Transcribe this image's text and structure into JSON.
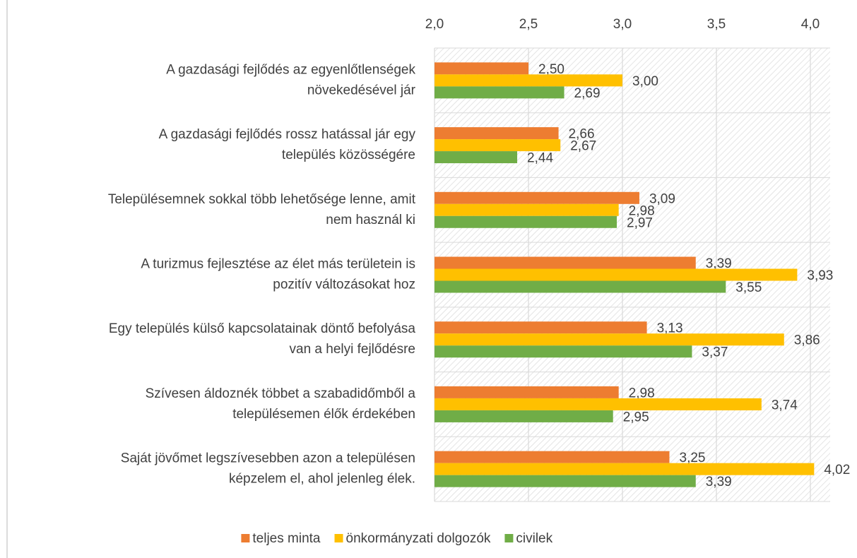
{
  "chart_data": {
    "type": "barh",
    "categories": [
      [
        "A gazdasági fejlődés az egyenlőtlenségek",
        "növekedésével jár"
      ],
      [
        "A gazdasági fejlődés rossz hatással jár egy",
        "település közösségére"
      ],
      [
        "Településemnek sokkal több lehetősége lenne, amit",
        "nem használ ki"
      ],
      [
        "A turizmus fejlesztése az élet más területein is",
        "pozitív változásokat hoz"
      ],
      [
        "Egy település külső kapcsolatainak döntő befolyása",
        "van a helyi fejlődésre"
      ],
      [
        "Szívesen áldoznék többet a szabadidőmből a",
        "településemen élők érdekében"
      ],
      [
        "Saját jövőmet legszívesebben azon a településen",
        "képzelem el, ahol jelenleg élek."
      ]
    ],
    "series": [
      {
        "name": "teljes minta",
        "color": "#ED7D31",
        "values": [
          2.5,
          2.66,
          3.09,
          3.39,
          3.13,
          2.98,
          3.25
        ],
        "value_labels": [
          "2,50",
          "2,66",
          "3,09",
          "3,39",
          "3,13",
          "2,98",
          "3,25"
        ]
      },
      {
        "name": "önkormányzati dolgozók",
        "color": "#FFC000",
        "values": [
          3.0,
          2.67,
          2.98,
          3.93,
          3.86,
          3.74,
          4.02
        ],
        "value_labels": [
          "3,00",
          "2,67",
          "2,98",
          "3,93",
          "3,86",
          "3,74",
          "4,02"
        ]
      },
      {
        "name": "civilek",
        "color": "#70AD47",
        "values": [
          2.69,
          2.44,
          2.97,
          3.55,
          3.37,
          2.95,
          3.39
        ],
        "value_labels": [
          "2,69",
          "2,44",
          "2,97",
          "3,55",
          "3,37",
          "2,95",
          "3,39"
        ]
      }
    ],
    "xlim": [
      2.0,
      4.0
    ],
    "xticks": [
      {
        "value": 2.0,
        "label": "2,0"
      },
      {
        "value": 2.5,
        "label": "2,5"
      },
      {
        "value": 3.0,
        "label": "3,0"
      },
      {
        "value": 3.5,
        "label": "3,5"
      },
      {
        "value": 4.0,
        "label": "4,0"
      }
    ],
    "grid": true,
    "legend": "bottom"
  }
}
